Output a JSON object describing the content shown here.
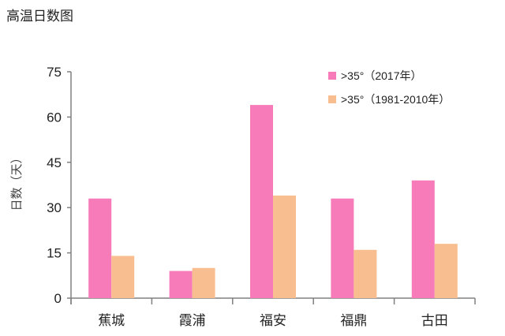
{
  "page": {
    "title": "高温日数图"
  },
  "chart_data": {
    "type": "bar",
    "title": "高温日数图",
    "xlabel": "",
    "ylabel": "日数（天）",
    "ylim": [
      0,
      75
    ],
    "yticks": [
      0,
      15,
      30,
      45,
      60,
      75
    ],
    "grid": false,
    "legend_position": "top-right",
    "categories": [
      "蕉城",
      "霞浦",
      "福安",
      "福鼎",
      "古田"
    ],
    "series": [
      {
        "name": ">35°（2017年）",
        "color": "#f77bb9",
        "values": [
          33,
          9,
          64,
          33,
          39
        ]
      },
      {
        "name": ">35°（1981-2010年）",
        "color": "#f9be8f",
        "values": [
          14,
          10,
          34,
          16,
          18
        ]
      }
    ]
  }
}
